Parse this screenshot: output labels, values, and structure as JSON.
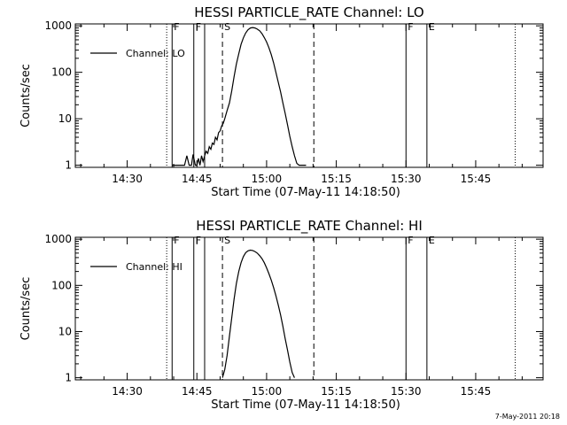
{
  "chart_data": [
    {
      "type": "line",
      "title": "HESSI PARTICLE_RATE Channel: LO",
      "xlabel": "Start Time (07-May-11 14:18:50)",
      "ylabel": "Counts/sec",
      "yscale": "log",
      "xlim": [
        "14:18:50",
        "15:59:30"
      ],
      "ylim": [
        0.9,
        1100
      ],
      "x_ticks": [
        "14:30",
        "14:45",
        "15:00",
        "15:15",
        "15:30",
        "15:45"
      ],
      "y_ticks": [
        "1",
        "10",
        "100",
        "1000"
      ],
      "legend": {
        "position": "top-left",
        "entries": [
          "Channel: LO"
        ]
      },
      "series": [
        {
          "name": "Channel: LO",
          "x": [
            "14:39:40",
            "14:40:10",
            "14:40:30",
            "14:41:00",
            "14:41:40",
            "14:42:20",
            "14:42:50",
            "14:43:20",
            "14:43:50",
            "14:44:10",
            "14:44:40",
            "14:45:00",
            "14:45:20",
            "14:45:40",
            "14:46:00",
            "14:46:20",
            "14:46:40",
            "14:47:00",
            "14:47:20",
            "14:47:40",
            "14:48:00",
            "14:48:20",
            "14:48:40",
            "14:49:00",
            "14:49:20",
            "14:49:40",
            "14:50:00",
            "14:50:20",
            "14:50:40",
            "14:51:00",
            "14:51:30",
            "14:52:00",
            "14:52:30",
            "14:53:00",
            "14:53:30",
            "14:54:00",
            "14:54:30",
            "14:55:00",
            "14:55:30",
            "14:56:00",
            "14:56:30",
            "14:57:00",
            "14:57:30",
            "14:58:00",
            "14:58:30",
            "14:59:00",
            "14:59:30",
            "15:00:00",
            "15:00:30",
            "15:01:00",
            "15:01:30",
            "15:02:00",
            "15:02:30",
            "15:03:00",
            "15:03:30",
            "15:04:00",
            "15:04:30",
            "15:05:00",
            "15:05:30",
            "15:06:00",
            "15:06:30",
            "15:07:00",
            "15:07:30",
            "15:08:00",
            "15:08:30"
          ],
          "y": [
            1,
            1,
            1,
            1,
            1,
            1,
            1.6,
            1,
            1,
            1.7,
            1,
            1,
            1.4,
            1,
            1.6,
            1.2,
            1.6,
            2,
            1.8,
            2.5,
            2.2,
            3,
            2.8,
            4,
            3.5,
            5,
            5.5,
            7,
            8,
            10,
            15,
            22,
            40,
            80,
            150,
            250,
            400,
            550,
            700,
            820,
            900,
            920,
            900,
            850,
            780,
            680,
            560,
            450,
            340,
            240,
            160,
            100,
            62,
            38,
            22,
            13,
            7.5,
            4.2,
            2.5,
            1.6,
            1.1,
            1,
            1,
            1,
            1
          ]
        }
      ],
      "markers": [
        {
          "label": "F",
          "x": "14:39:40",
          "style": "solid"
        },
        {
          "label": "F",
          "x": "14:44:20",
          "style": "solid"
        },
        {
          "label": "",
          "x": "14:46:40",
          "style": "solid"
        },
        {
          "label": "S",
          "x": "14:50:30",
          "style": "dashed"
        },
        {
          "label": "",
          "x": "15:10:10",
          "style": "dashed"
        },
        {
          "label": "F",
          "x": "15:30:00",
          "style": "solid"
        },
        {
          "label": "E",
          "x": "15:34:30",
          "style": "solid"
        },
        {
          "label": "",
          "x": "14:38:30",
          "style": "dotted"
        },
        {
          "label": "",
          "x": "15:53:30",
          "style": "dotted"
        }
      ]
    },
    {
      "type": "line",
      "title": "HESSI PARTICLE_RATE Channel: HI",
      "xlabel": "Start Time (07-May-11 14:18:50)",
      "ylabel": "Counts/sec",
      "yscale": "log",
      "xlim": [
        "14:18:50",
        "15:59:30"
      ],
      "ylim": [
        0.9,
        1100
      ],
      "x_ticks": [
        "14:30",
        "14:45",
        "15:00",
        "15:15",
        "15:30",
        "15:45"
      ],
      "y_ticks": [
        "1",
        "10",
        "100",
        "1000"
      ],
      "legend": {
        "position": "top-left",
        "entries": [
          "Channel: HI"
        ]
      },
      "series": [
        {
          "name": "Channel: HI",
          "x": [
            "14:50:30",
            "14:51:00",
            "14:51:30",
            "14:52:00",
            "14:52:30",
            "14:53:00",
            "14:53:30",
            "14:54:00",
            "14:54:30",
            "14:55:00",
            "14:55:30",
            "14:56:00",
            "14:56:30",
            "14:57:00",
            "14:57:30",
            "14:58:00",
            "14:58:30",
            "14:59:00",
            "14:59:30",
            "15:00:00",
            "15:00:30",
            "15:01:00",
            "15:01:30",
            "15:02:00",
            "15:02:30",
            "15:03:00",
            "15:03:30",
            "15:04:00",
            "15:04:30",
            "15:05:00",
            "15:05:30",
            "15:06:00"
          ],
          "y": [
            1,
            1.5,
            3,
            8,
            20,
            50,
            110,
            200,
            310,
            420,
            510,
            560,
            580,
            570,
            540,
            500,
            440,
            380,
            310,
            240,
            180,
            130,
            90,
            60,
            38,
            23,
            13,
            7,
            4,
            2.2,
            1.3,
            1
          ]
        }
      ],
      "markers": [
        {
          "label": "F",
          "x": "14:39:40",
          "style": "solid"
        },
        {
          "label": "F",
          "x": "14:44:20",
          "style": "solid"
        },
        {
          "label": "",
          "x": "14:46:40",
          "style": "solid"
        },
        {
          "label": "S",
          "x": "14:50:30",
          "style": "dashed"
        },
        {
          "label": "",
          "x": "15:10:10",
          "style": "dashed"
        },
        {
          "label": "F",
          "x": "15:30:00",
          "style": "solid"
        },
        {
          "label": "E",
          "x": "15:34:30",
          "style": "solid"
        },
        {
          "label": "",
          "x": "14:38:30",
          "style": "dotted"
        },
        {
          "label": "",
          "x": "15:53:30",
          "style": "dotted"
        }
      ]
    }
  ],
  "footer": {
    "stamp": "7-May-2011 20:18"
  }
}
